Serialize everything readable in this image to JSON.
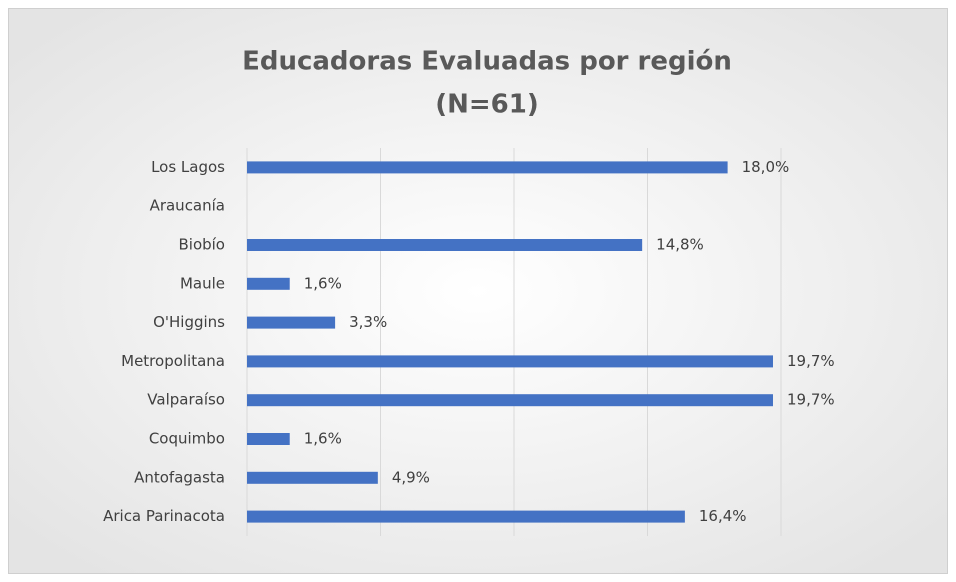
{
  "chart_data": {
    "type": "hbar",
    "title": "Educadoras Evaluadas por región",
    "subtitle": "(N=61)",
    "categories": [
      "Los Lagos",
      "Araucanía",
      "Biobío",
      "Maule",
      "O'Higgins",
      "Metropolitana",
      "Valparaíso",
      "Coquimbo",
      "Antofagasta",
      "Arica Parinacota"
    ],
    "values": [
      18.0,
      null,
      14.8,
      1.6,
      3.3,
      19.7,
      19.7,
      1.6,
      4.9,
      16.4
    ],
    "value_labels": [
      "18,0%",
      null,
      "14,8%",
      "1,6%",
      "3,3%",
      "19,7%",
      "19,7%",
      "1,6%",
      "4,9%",
      "16,4%"
    ],
    "color": "#4472c4",
    "xlim": [
      0,
      20
    ],
    "xticks": [
      0,
      5,
      10,
      15,
      20
    ],
    "grid": true
  }
}
